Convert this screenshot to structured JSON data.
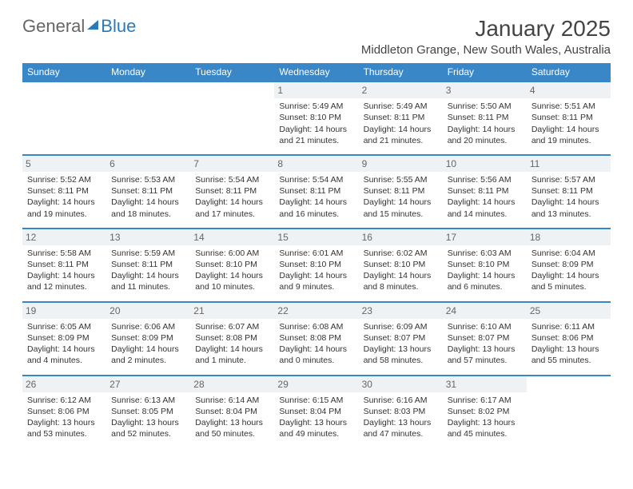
{
  "brand": {
    "part1": "General",
    "part2": "Blue"
  },
  "title": "January 2025",
  "location": "Middleton Grange, New South Wales, Australia",
  "colors": {
    "header_bg": "#3a87c8",
    "header_text": "#ffffff",
    "row_border": "#3a87c8",
    "daynum_bg": "#eef2f5",
    "daynum_text": "#666666",
    "body_text": "#333333",
    "brand_blue": "#2a7ab9",
    "brand_gray": "#666666"
  },
  "day_headers": [
    "Sunday",
    "Monday",
    "Tuesday",
    "Wednesday",
    "Thursday",
    "Friday",
    "Saturday"
  ],
  "weeks": [
    [
      null,
      null,
      null,
      {
        "n": "1",
        "sunrise": "Sunrise: 5:49 AM",
        "sunset": "Sunset: 8:10 PM",
        "daylight": "Daylight: 14 hours and 21 minutes."
      },
      {
        "n": "2",
        "sunrise": "Sunrise: 5:49 AM",
        "sunset": "Sunset: 8:11 PM",
        "daylight": "Daylight: 14 hours and 21 minutes."
      },
      {
        "n": "3",
        "sunrise": "Sunrise: 5:50 AM",
        "sunset": "Sunset: 8:11 PM",
        "daylight": "Daylight: 14 hours and 20 minutes."
      },
      {
        "n": "4",
        "sunrise": "Sunrise: 5:51 AM",
        "sunset": "Sunset: 8:11 PM",
        "daylight": "Daylight: 14 hours and 19 minutes."
      }
    ],
    [
      {
        "n": "5",
        "sunrise": "Sunrise: 5:52 AM",
        "sunset": "Sunset: 8:11 PM",
        "daylight": "Daylight: 14 hours and 19 minutes."
      },
      {
        "n": "6",
        "sunrise": "Sunrise: 5:53 AM",
        "sunset": "Sunset: 8:11 PM",
        "daylight": "Daylight: 14 hours and 18 minutes."
      },
      {
        "n": "7",
        "sunrise": "Sunrise: 5:54 AM",
        "sunset": "Sunset: 8:11 PM",
        "daylight": "Daylight: 14 hours and 17 minutes."
      },
      {
        "n": "8",
        "sunrise": "Sunrise: 5:54 AM",
        "sunset": "Sunset: 8:11 PM",
        "daylight": "Daylight: 14 hours and 16 minutes."
      },
      {
        "n": "9",
        "sunrise": "Sunrise: 5:55 AM",
        "sunset": "Sunset: 8:11 PM",
        "daylight": "Daylight: 14 hours and 15 minutes."
      },
      {
        "n": "10",
        "sunrise": "Sunrise: 5:56 AM",
        "sunset": "Sunset: 8:11 PM",
        "daylight": "Daylight: 14 hours and 14 minutes."
      },
      {
        "n": "11",
        "sunrise": "Sunrise: 5:57 AM",
        "sunset": "Sunset: 8:11 PM",
        "daylight": "Daylight: 14 hours and 13 minutes."
      }
    ],
    [
      {
        "n": "12",
        "sunrise": "Sunrise: 5:58 AM",
        "sunset": "Sunset: 8:11 PM",
        "daylight": "Daylight: 14 hours and 12 minutes."
      },
      {
        "n": "13",
        "sunrise": "Sunrise: 5:59 AM",
        "sunset": "Sunset: 8:11 PM",
        "daylight": "Daylight: 14 hours and 11 minutes."
      },
      {
        "n": "14",
        "sunrise": "Sunrise: 6:00 AM",
        "sunset": "Sunset: 8:10 PM",
        "daylight": "Daylight: 14 hours and 10 minutes."
      },
      {
        "n": "15",
        "sunrise": "Sunrise: 6:01 AM",
        "sunset": "Sunset: 8:10 PM",
        "daylight": "Daylight: 14 hours and 9 minutes."
      },
      {
        "n": "16",
        "sunrise": "Sunrise: 6:02 AM",
        "sunset": "Sunset: 8:10 PM",
        "daylight": "Daylight: 14 hours and 8 minutes."
      },
      {
        "n": "17",
        "sunrise": "Sunrise: 6:03 AM",
        "sunset": "Sunset: 8:10 PM",
        "daylight": "Daylight: 14 hours and 6 minutes."
      },
      {
        "n": "18",
        "sunrise": "Sunrise: 6:04 AM",
        "sunset": "Sunset: 8:09 PM",
        "daylight": "Daylight: 14 hours and 5 minutes."
      }
    ],
    [
      {
        "n": "19",
        "sunrise": "Sunrise: 6:05 AM",
        "sunset": "Sunset: 8:09 PM",
        "daylight": "Daylight: 14 hours and 4 minutes."
      },
      {
        "n": "20",
        "sunrise": "Sunrise: 6:06 AM",
        "sunset": "Sunset: 8:09 PM",
        "daylight": "Daylight: 14 hours and 2 minutes."
      },
      {
        "n": "21",
        "sunrise": "Sunrise: 6:07 AM",
        "sunset": "Sunset: 8:08 PM",
        "daylight": "Daylight: 14 hours and 1 minute."
      },
      {
        "n": "22",
        "sunrise": "Sunrise: 6:08 AM",
        "sunset": "Sunset: 8:08 PM",
        "daylight": "Daylight: 14 hours and 0 minutes."
      },
      {
        "n": "23",
        "sunrise": "Sunrise: 6:09 AM",
        "sunset": "Sunset: 8:07 PM",
        "daylight": "Daylight: 13 hours and 58 minutes."
      },
      {
        "n": "24",
        "sunrise": "Sunrise: 6:10 AM",
        "sunset": "Sunset: 8:07 PM",
        "daylight": "Daylight: 13 hours and 57 minutes."
      },
      {
        "n": "25",
        "sunrise": "Sunrise: 6:11 AM",
        "sunset": "Sunset: 8:06 PM",
        "daylight": "Daylight: 13 hours and 55 minutes."
      }
    ],
    [
      {
        "n": "26",
        "sunrise": "Sunrise: 6:12 AM",
        "sunset": "Sunset: 8:06 PM",
        "daylight": "Daylight: 13 hours and 53 minutes."
      },
      {
        "n": "27",
        "sunrise": "Sunrise: 6:13 AM",
        "sunset": "Sunset: 8:05 PM",
        "daylight": "Daylight: 13 hours and 52 minutes."
      },
      {
        "n": "28",
        "sunrise": "Sunrise: 6:14 AM",
        "sunset": "Sunset: 8:04 PM",
        "daylight": "Daylight: 13 hours and 50 minutes."
      },
      {
        "n": "29",
        "sunrise": "Sunrise: 6:15 AM",
        "sunset": "Sunset: 8:04 PM",
        "daylight": "Daylight: 13 hours and 49 minutes."
      },
      {
        "n": "30",
        "sunrise": "Sunrise: 6:16 AM",
        "sunset": "Sunset: 8:03 PM",
        "daylight": "Daylight: 13 hours and 47 minutes."
      },
      {
        "n": "31",
        "sunrise": "Sunrise: 6:17 AM",
        "sunset": "Sunset: 8:02 PM",
        "daylight": "Daylight: 13 hours and 45 minutes."
      },
      null
    ]
  ]
}
